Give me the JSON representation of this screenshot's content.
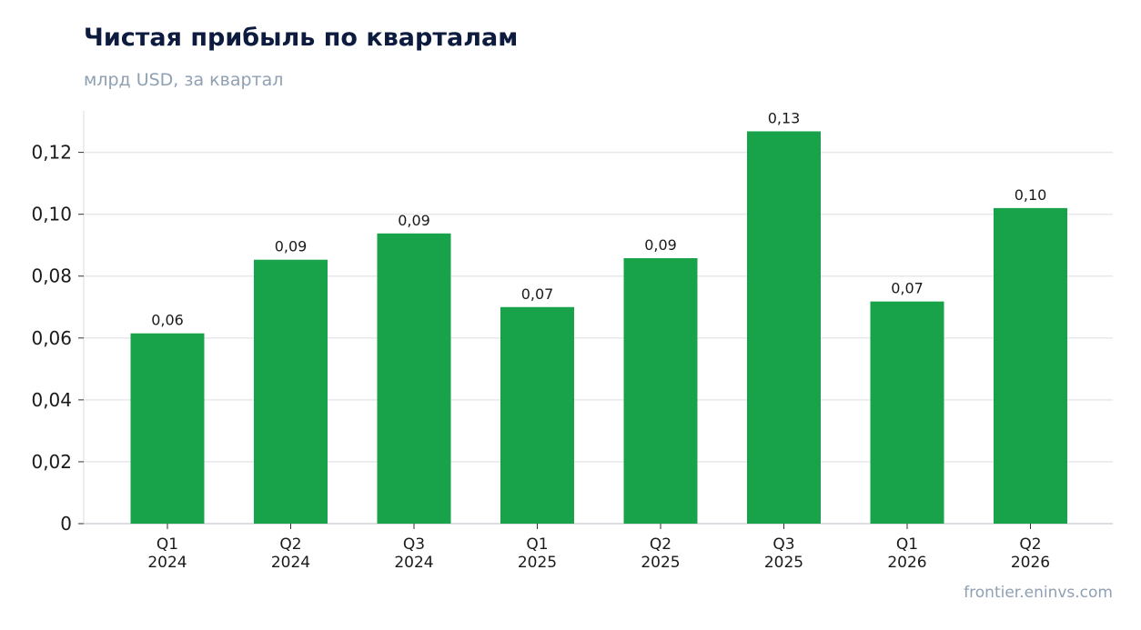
{
  "header": {
    "title": "Чистая прибыль по кварталам",
    "subtitle": "млрд USD, за квартал"
  },
  "footer": {
    "source": "frontier.eninvs.com"
  },
  "colors": {
    "bar": "#18a34a",
    "grid": "#e6e8eb",
    "axis": "#cfd4da",
    "title": "#0d1b3e",
    "muted": "#8fa0b3"
  },
  "chart_data": {
    "type": "bar",
    "categories": [
      [
        "Q1",
        "2024"
      ],
      [
        "Q2",
        "2024"
      ],
      [
        "Q3",
        "2024"
      ],
      [
        "Q1",
        "2025"
      ],
      [
        "Q2",
        "2025"
      ],
      [
        "Q3",
        "2025"
      ],
      [
        "Q1",
        "2026"
      ],
      [
        "Q2",
        "2026"
      ]
    ],
    "values": [
      0.0615,
      0.0853,
      0.0938,
      0.07,
      0.0858,
      0.1268,
      0.0718,
      0.102
    ],
    "data_labels": [
      "0,06",
      "0,09",
      "0,09",
      "0,07",
      "0,09",
      "0,13",
      "0,07",
      "0,10"
    ],
    "yticks": [
      0,
      0.02,
      0.04,
      0.06,
      0.08,
      0.1,
      0.12
    ],
    "ytick_labels": [
      "0",
      "0,02",
      "0,04",
      "0,06",
      "0,08",
      "0,10",
      "0,12"
    ],
    "ylim": [
      0,
      0.1334
    ],
    "grid": true
  }
}
